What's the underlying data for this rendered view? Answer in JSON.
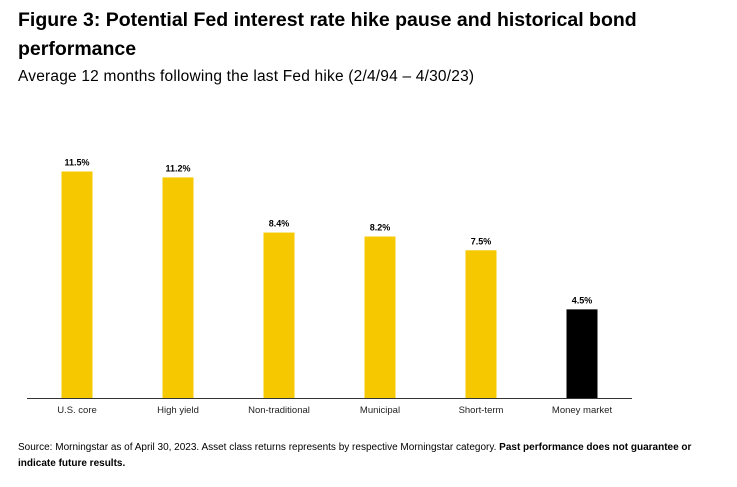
{
  "header": {
    "title": "Figure 3: Potential Fed interest rate hike pause and historical bond performance",
    "subtitle": "Average 12 months following the last Fed hike (2/4/94 – 4/30/23)"
  },
  "footer": {
    "source_text": "Source: Morningstar as of April 30, 2023. Asset class returns represents by respective Morningstar category. ",
    "disclaimer": "Past performance does not guarantee or indicate future results."
  },
  "chart_data": {
    "type": "bar",
    "title": "Figure 3: Potential Fed interest rate hike pause and historical bond performance",
    "subtitle": "Average 12 months following the last Fed hike (2/4/94 – 4/30/23)",
    "xlabel": "",
    "ylabel": "",
    "ylim": [
      0,
      11.5
    ],
    "grid": false,
    "legend": "none",
    "categories": [
      "U.S. core",
      "High yield",
      "Non-traditional",
      "Municipal",
      "Short-term",
      "Money market"
    ],
    "values": [
      11.5,
      11.2,
      8.4,
      8.2,
      7.5,
      4.5
    ],
    "data_labels": [
      "11.5%",
      "11.2%",
      "8.4%",
      "8.2%",
      "7.5%",
      "4.5%"
    ],
    "bar_colors": [
      "#f5c800",
      "#f5c800",
      "#f5c800",
      "#f5c800",
      "#f5c800",
      "#000000"
    ],
    "axis_color": "#333333"
  }
}
